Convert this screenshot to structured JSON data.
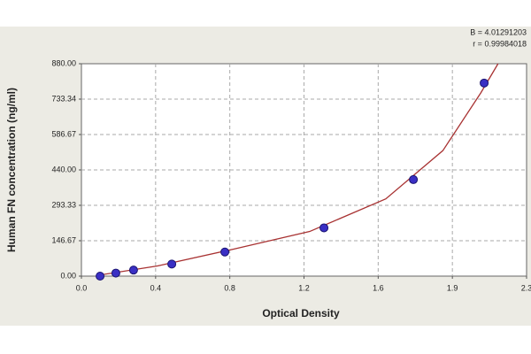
{
  "chart_data": {
    "type": "scatter",
    "x_label": "Optical Density",
    "y_label": "Human FN concentration (ng/ml)",
    "annotations": [
      "B = 4.01291203",
      "r = 0.99984018"
    ],
    "x": [
      0.098,
      0.181,
      0.274,
      0.475,
      0.754,
      1.275,
      1.745,
      2.117
    ],
    "values": [
      0,
      12.5,
      25,
      50,
      100,
      200,
      400,
      800
    ],
    "color": "#3a2fc4",
    "fit": {
      "color": "#a83232",
      "x": [
        0.1,
        0.4,
        0.8,
        1.2,
        1.6,
        1.9,
        2.1,
        2.19
      ],
      "values": [
        5,
        42,
        112,
        185,
        320,
        520,
        760,
        880
      ]
    },
    "xlim": [
      0,
      2.34
    ],
    "xticks": [
      {
        "value": 0,
        "label": "0.0"
      },
      {
        "value": 0.39,
        "label": "0.4"
      },
      {
        "value": 0.78,
        "label": "0.8"
      },
      {
        "value": 1.17,
        "label": "1.2"
      },
      {
        "value": 1.56,
        "label": "1.6"
      },
      {
        "value": 1.95,
        "label": "1.9"
      },
      {
        "value": 2.34,
        "label": "2.3"
      }
    ],
    "ylim": [
      0,
      880
    ],
    "yticks": [
      {
        "value": 0,
        "label": "0.00"
      },
      146.67,
      293.33,
      {
        "value": 440,
        "label": "440.00"
      },
      586.67,
      733.34,
      {
        "value": 880,
        "label": "880.00"
      }
    ],
    "grid": true
  }
}
